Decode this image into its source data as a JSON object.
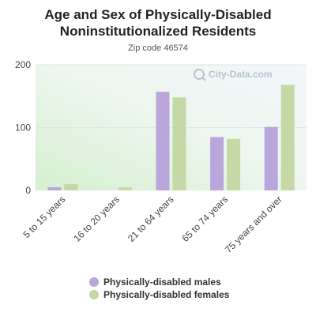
{
  "chart_data": {
    "type": "bar",
    "title": "Age and Sex of Physically-Disabled Noninstitutionalized Residents",
    "subtitle": "Zip code 46574",
    "watermark": "City-Data.com",
    "categories": [
      "5 to 15 years",
      "16 to 20 years",
      "21 to 64 years",
      "65 to 74 years",
      "75 years and over"
    ],
    "series": [
      {
        "name": "Physically-disabled males",
        "color": "#b9a7db",
        "values": [
          5,
          0,
          157,
          85,
          101
        ]
      },
      {
        "name": "Physically-disabled females",
        "color": "#c4d9a6",
        "values": [
          10,
          5,
          148,
          82,
          168
        ]
      }
    ],
    "yticks": [
      0,
      100,
      200
    ],
    "ylim": [
      0,
      200
    ],
    "grid": true,
    "legend_position": "bottom"
  }
}
